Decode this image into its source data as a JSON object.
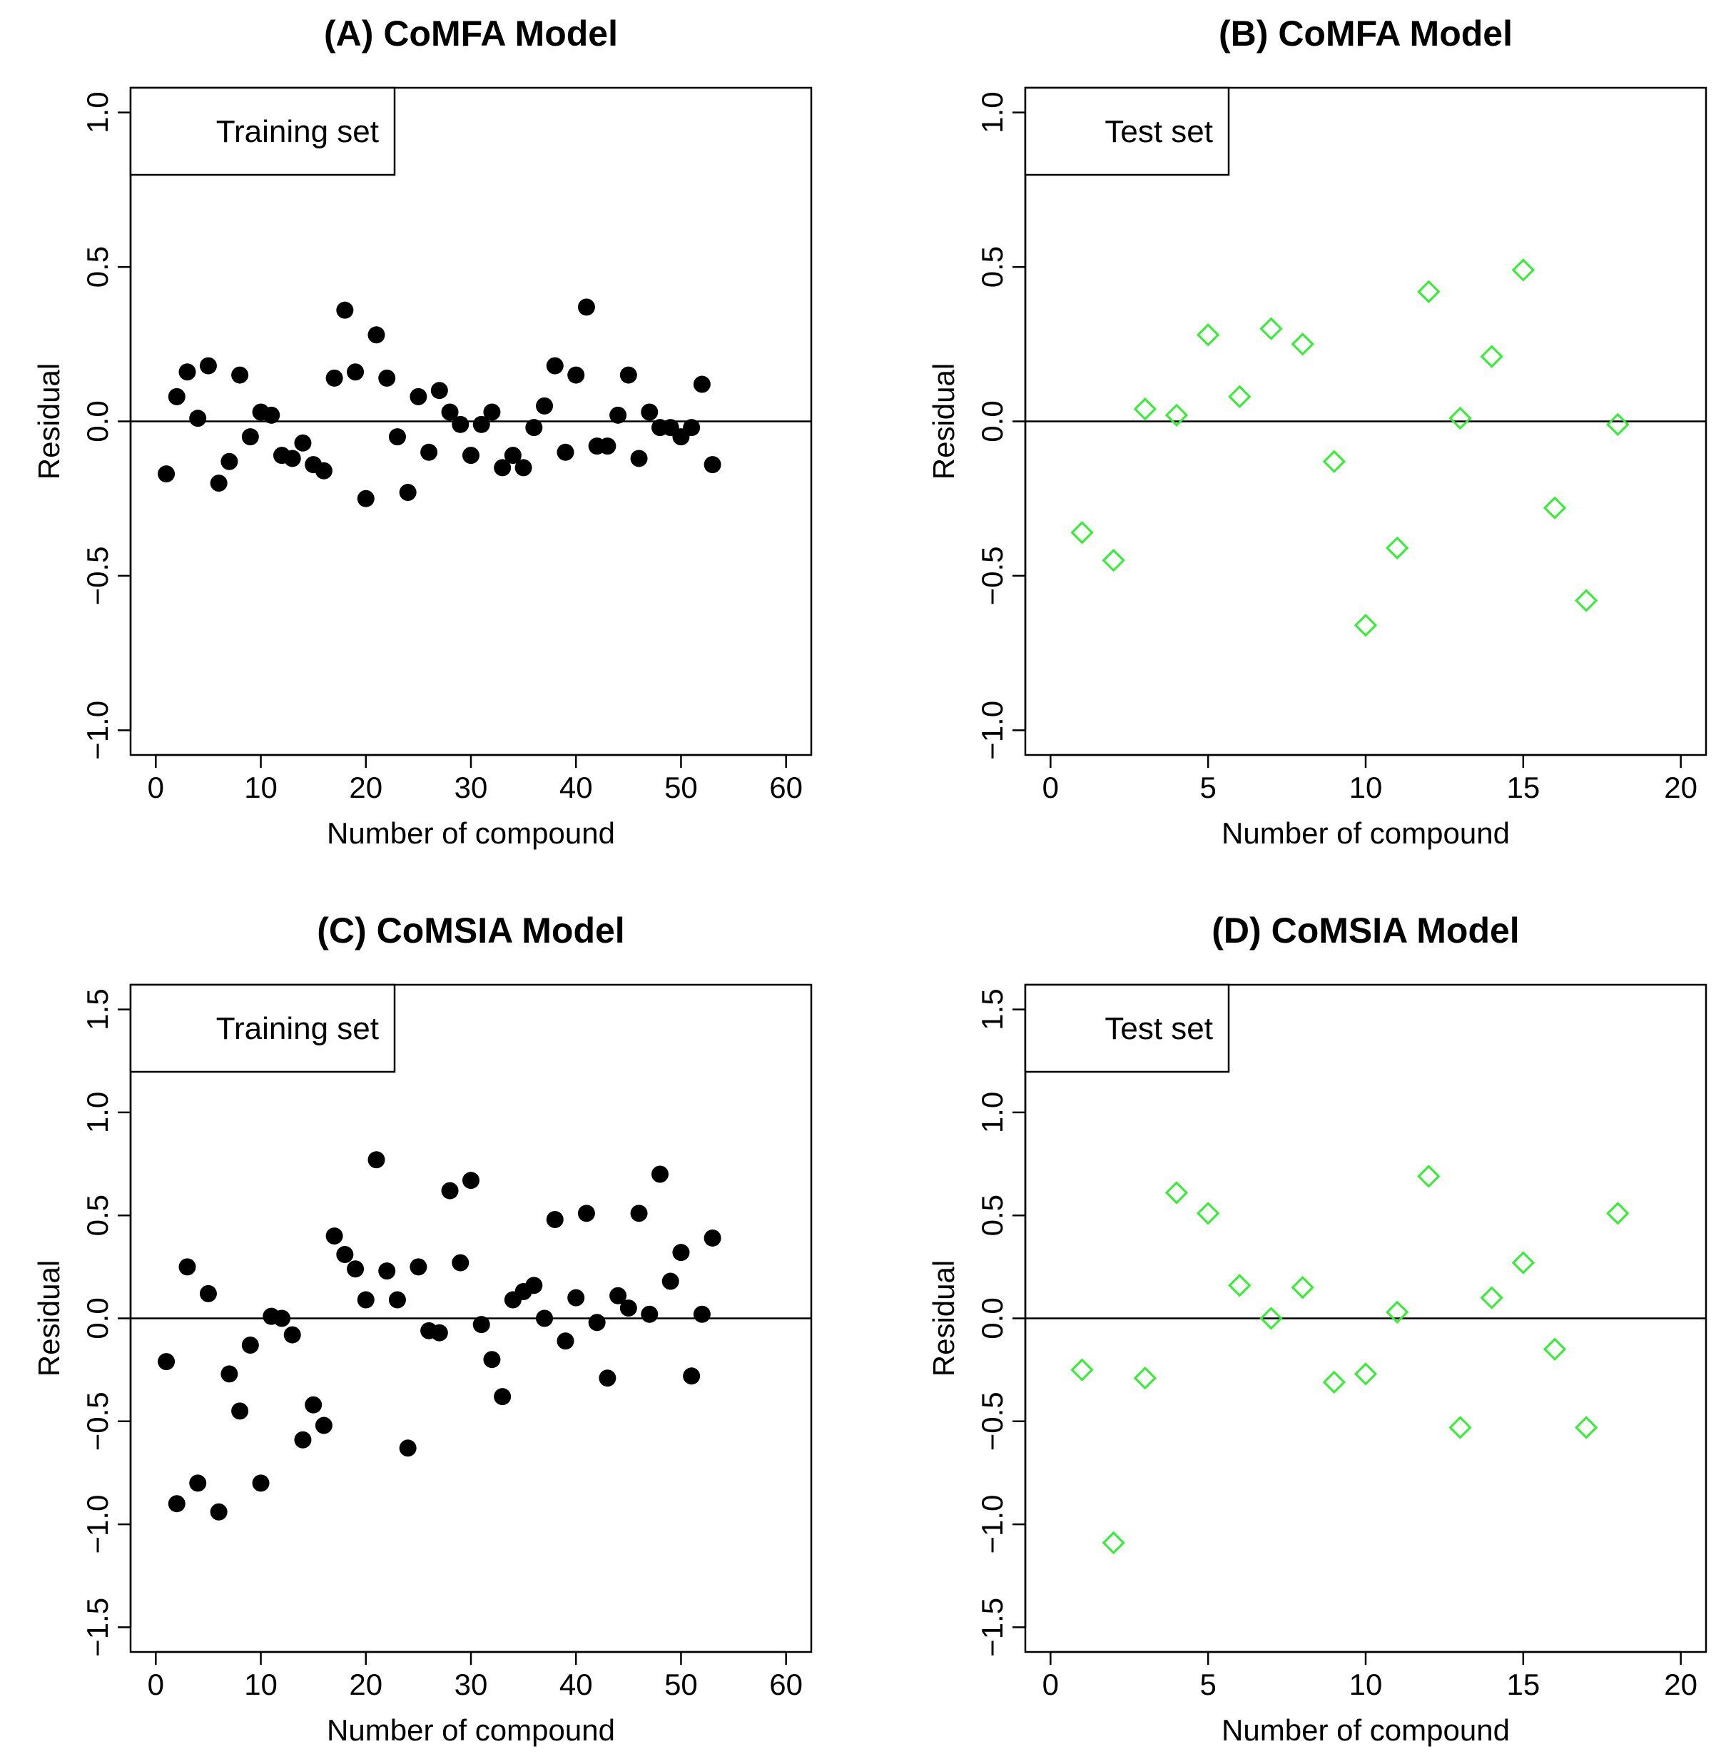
{
  "chart_data": [
    {
      "type": "scatter",
      "title": "(A) CoMFA Model",
      "xlabel": "Number of compound",
      "ylabel": "Residual",
      "legend": "Training set",
      "legend_position": "top-left",
      "xlim": [
        0,
        60
      ],
      "ylim": [
        -1.0,
        1.0
      ],
      "xticks": [
        0,
        10,
        20,
        30,
        40,
        50,
        60
      ],
      "yticks": [
        -1.0,
        -0.5,
        0.0,
        0.5,
        1.0
      ],
      "ytick_labels": [
        "−1.0",
        "−0.5",
        "0.0",
        "0.5",
        "1.0"
      ],
      "marker": "filled-circle",
      "color": "#000000",
      "x": [
        1,
        2,
        3,
        4,
        5,
        6,
        7,
        8,
        9,
        10,
        11,
        12,
        13,
        14,
        15,
        16,
        17,
        18,
        19,
        20,
        21,
        22,
        23,
        24,
        25,
        26,
        27,
        28,
        29,
        30,
        31,
        32,
        33,
        34,
        35,
        36,
        37,
        38,
        39,
        40,
        41,
        42,
        43,
        44,
        45,
        46,
        47,
        48,
        49,
        50,
        51,
        52,
        53
      ],
      "y": [
        -0.17,
        0.08,
        0.16,
        0.01,
        0.18,
        -0.2,
        -0.13,
        0.15,
        -0.05,
        0.03,
        0.02,
        -0.11,
        -0.12,
        -0.07,
        -0.14,
        -0.16,
        0.14,
        0.36,
        0.16,
        -0.25,
        0.28,
        0.14,
        -0.05,
        -0.23,
        0.08,
        -0.1,
        0.1,
        0.03,
        -0.01,
        -0.11,
        -0.01,
        0.03,
        -0.15,
        -0.11,
        -0.15,
        -0.02,
        0.05,
        0.18,
        -0.1,
        0.15,
        0.37,
        -0.08,
        -0.08,
        0.02,
        0.15,
        -0.12,
        0.03,
        -0.02,
        -0.02,
        -0.05,
        -0.02,
        0.12,
        -0.14
      ]
    },
    {
      "type": "scatter",
      "title": "(B) CoMFA Model",
      "xlabel": "Number of compound",
      "ylabel": "Residual",
      "legend": "Test set",
      "legend_position": "top-left",
      "xlim": [
        0,
        20
      ],
      "ylim": [
        -1.0,
        1.0
      ],
      "xticks": [
        0,
        5,
        10,
        15,
        20
      ],
      "yticks": [
        -1.0,
        -0.5,
        0.0,
        0.5,
        1.0
      ],
      "ytick_labels": [
        "−1.0",
        "−0.5",
        "0.0",
        "0.5",
        "1.0"
      ],
      "marker": "open-diamond",
      "color": "#33ee33",
      "x": [
        1,
        2,
        3,
        4,
        5,
        6,
        7,
        8,
        9,
        10,
        11,
        12,
        13,
        14,
        15,
        16,
        17,
        18
      ],
      "y": [
        -0.36,
        -0.45,
        0.04,
        0.02,
        0.28,
        0.08,
        0.3,
        0.25,
        -0.13,
        -0.66,
        -0.41,
        0.42,
        0.01,
        0.21,
        0.49,
        -0.28,
        -0.58,
        -0.01
      ]
    },
    {
      "type": "scatter",
      "title": "(C) CoMSIA Model",
      "xlabel": "Number of compound",
      "ylabel": "Residual",
      "legend": "Training set",
      "legend_position": "top-left",
      "xlim": [
        0,
        60
      ],
      "ylim": [
        -1.5,
        1.5
      ],
      "xticks": [
        0,
        10,
        20,
        30,
        40,
        50,
        60
      ],
      "yticks": [
        -1.5,
        -1.0,
        -0.5,
        0.0,
        0.5,
        1.0,
        1.5
      ],
      "ytick_labels": [
        "−1.5",
        "−1.0",
        "−0.5",
        "0.0",
        "0.5",
        "1.0",
        "1.5"
      ],
      "marker": "filled-circle",
      "color": "#000000",
      "x": [
        1,
        2,
        3,
        4,
        5,
        6,
        7,
        8,
        9,
        10,
        11,
        12,
        13,
        14,
        15,
        16,
        17,
        18,
        19,
        20,
        21,
        22,
        23,
        24,
        25,
        26,
        27,
        28,
        29,
        30,
        31,
        32,
        33,
        34,
        35,
        36,
        37,
        38,
        39,
        40,
        41,
        42,
        43,
        44,
        45,
        46,
        47,
        48,
        49,
        50,
        51,
        52,
        53
      ],
      "y": [
        -0.21,
        -0.9,
        0.25,
        -0.8,
        0.12,
        -0.94,
        -0.27,
        -0.45,
        -0.13,
        -0.8,
        0.01,
        0.0,
        -0.08,
        -0.59,
        -0.42,
        -0.52,
        0.4,
        0.31,
        0.24,
        0.09,
        0.77,
        0.23,
        0.09,
        -0.63,
        0.25,
        -0.06,
        -0.07,
        0.62,
        0.27,
        0.67,
        -0.03,
        -0.2,
        -0.38,
        0.09,
        0.13,
        0.16,
        0.0,
        0.48,
        -0.11,
        0.1,
        0.51,
        -0.02,
        -0.29,
        0.11,
        0.05,
        0.51,
        0.02,
        0.7,
        0.18,
        0.32,
        -0.28,
        0.02,
        0.39
      ]
    },
    {
      "type": "scatter",
      "title": "(D) CoMSIA Model",
      "xlabel": "Number of compound",
      "ylabel": "Residual",
      "legend": "Test set",
      "legend_position": "top-left",
      "xlim": [
        0,
        20
      ],
      "ylim": [
        -1.5,
        1.5
      ],
      "xticks": [
        0,
        5,
        10,
        15,
        20
      ],
      "yticks": [
        -1.5,
        -1.0,
        -0.5,
        0.0,
        0.5,
        1.0,
        1.5
      ],
      "ytick_labels": [
        "−1.5",
        "−1.0",
        "−0.5",
        "0.0",
        "0.5",
        "1.0",
        "1.5"
      ],
      "marker": "open-diamond",
      "color": "#33ee33",
      "x": [
        1,
        2,
        3,
        4,
        5,
        6,
        7,
        8,
        9,
        10,
        11,
        12,
        13,
        14,
        15,
        16,
        17,
        18
      ],
      "y": [
        -0.25,
        -1.09,
        -0.29,
        0.61,
        0.51,
        0.16,
        0.0,
        0.15,
        -0.31,
        -0.27,
        0.03,
        0.69,
        -0.53,
        0.1,
        0.27,
        -0.15,
        -0.53,
        0.51
      ]
    }
  ]
}
